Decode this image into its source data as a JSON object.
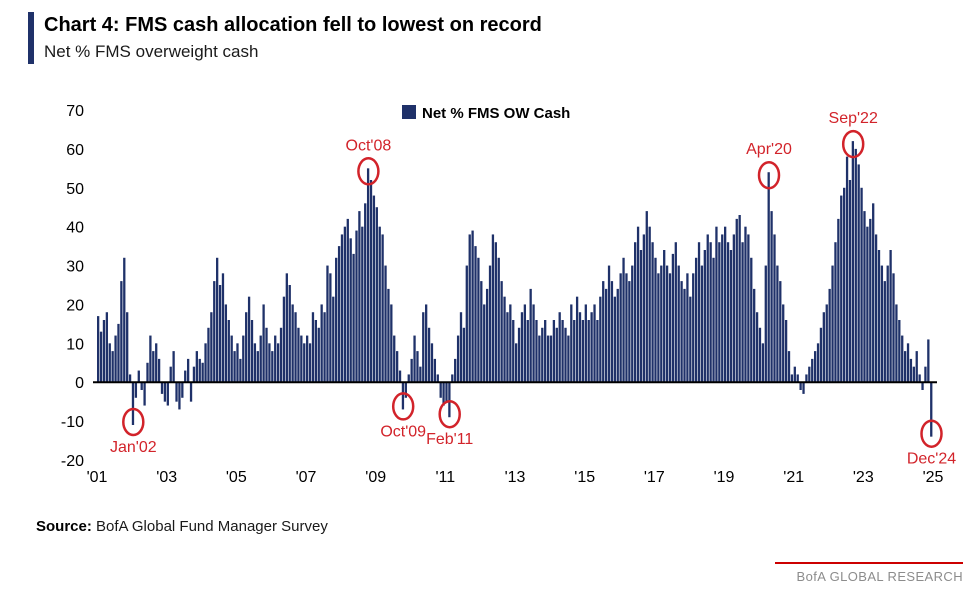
{
  "header": {
    "title": "Chart 4: FMS cash allocation fell to lowest on record",
    "subtitle": "Net % FMS overweight cash"
  },
  "footer": {
    "source_label": "Source:",
    "source_text": "BofA Global Fund Manager Survey",
    "brand": "BofA GLOBAL RESEARCH"
  },
  "colors": {
    "bar": "#1f3169",
    "annotation": "#d2232a",
    "zero_line": "#000000",
    "brand_rule": "#cc0000",
    "brand_text": "#8c8c8c"
  },
  "chart_data": {
    "type": "bar",
    "legend": {
      "label": "Net % FMS OW Cash",
      "position": "top-center"
    },
    "grid": false,
    "ylim": [
      -20,
      70
    ],
    "yticks": [
      70,
      60,
      50,
      40,
      30,
      20,
      10,
      0,
      -10,
      -20
    ],
    "xtick_labels": [
      "'01",
      "'03",
      "'05",
      "'07",
      "'09",
      "'11",
      "'13",
      "'15",
      "'17",
      "'19",
      "'21",
      "'23",
      "'25"
    ],
    "xtick_step_months": 24,
    "start_year": 2001,
    "start_month": 1,
    "values": [
      17,
      13,
      16,
      18,
      10,
      8,
      12,
      15,
      26,
      32,
      18,
      2,
      -11,
      -4,
      3,
      -2,
      -6,
      5,
      12,
      8,
      10,
      6,
      -3,
      -5,
      -6,
      4,
      8,
      -5,
      -7,
      -4,
      3,
      6,
      -5,
      4,
      8,
      6,
      5,
      10,
      14,
      18,
      26,
      32,
      25,
      28,
      20,
      16,
      12,
      8,
      10,
      6,
      12,
      18,
      22,
      16,
      10,
      8,
      12,
      20,
      14,
      10,
      8,
      12,
      10,
      14,
      22,
      28,
      25,
      20,
      18,
      14,
      12,
      10,
      12,
      10,
      18,
      16,
      14,
      20,
      18,
      30,
      28,
      22,
      32,
      35,
      38,
      40,
      42,
      37,
      33,
      39,
      44,
      40,
      46,
      55,
      52,
      48,
      45,
      40,
      38,
      30,
      24,
      20,
      12,
      8,
      3,
      -7,
      -4,
      2,
      6,
      12,
      8,
      4,
      18,
      20,
      14,
      10,
      6,
      2,
      -4,
      -6,
      -5,
      -9,
      2,
      6,
      12,
      18,
      14,
      30,
      38,
      39,
      35,
      32,
      26,
      20,
      24,
      30,
      38,
      36,
      32,
      26,
      22,
      18,
      20,
      16,
      10,
      14,
      18,
      20,
      16,
      24,
      20,
      16,
      12,
      14,
      16,
      12,
      12,
      16,
      14,
      18,
      16,
      14,
      12,
      20,
      16,
      22,
      18,
      16,
      20,
      16,
      18,
      20,
      16,
      22,
      26,
      24,
      30,
      26,
      22,
      24,
      28,
      32,
      28,
      26,
      30,
      36,
      40,
      34,
      38,
      44,
      40,
      36,
      32,
      28,
      30,
      34,
      30,
      28,
      33,
      36,
      30,
      26,
      24,
      28,
      22,
      28,
      32,
      36,
      30,
      34,
      38,
      36,
      32,
      40,
      36,
      38,
      40,
      36,
      34,
      38,
      42,
      43,
      36,
      40,
      38,
      32,
      24,
      18,
      14,
      10,
      30,
      54,
      44,
      38,
      30,
      26,
      20,
      16,
      8,
      2,
      4,
      2,
      -2,
      -3,
      2,
      4,
      6,
      8,
      10,
      14,
      18,
      20,
      24,
      30,
      36,
      42,
      48,
      50,
      58,
      52,
      62,
      60,
      56,
      50,
      44,
      40,
      42,
      46,
      38,
      34,
      30,
      26,
      30,
      34,
      28,
      20,
      16,
      12,
      8,
      10,
      6,
      4,
      8,
      2,
      -2,
      4,
      11,
      -14
    ],
    "annotations": [
      {
        "label": "Jan'02",
        "month_index": 12,
        "value": -11,
        "placement": "below"
      },
      {
        "label": "Oct'08",
        "month_index": 93,
        "value": 55,
        "placement": "above"
      },
      {
        "label": "Oct'09",
        "month_index": 105,
        "value": -7,
        "placement": "below"
      },
      {
        "label": "Feb'11",
        "month_index": 121,
        "value": -9,
        "placement": "below"
      },
      {
        "label": "Apr'20",
        "month_index": 231,
        "value": 54,
        "placement": "above"
      },
      {
        "label": "Sep'22",
        "month_index": 260,
        "value": 62,
        "placement": "above"
      },
      {
        "label": "Dec'24",
        "month_index": 287,
        "value": -14,
        "placement": "below"
      }
    ]
  }
}
